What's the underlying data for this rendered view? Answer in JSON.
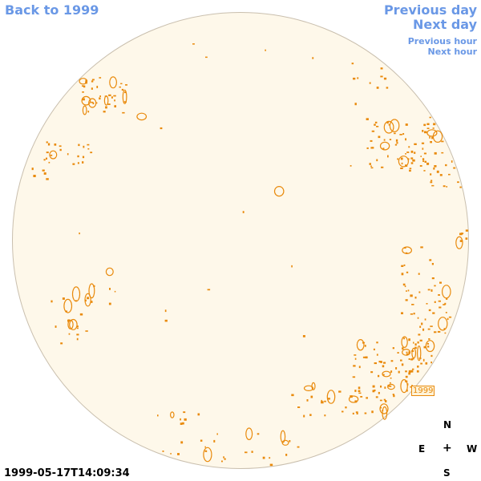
{
  "nav": {
    "back": "Back to 1999",
    "previous_day": "Previous day",
    "next_day": "Next day",
    "previous_hour": "Previous hour",
    "next_hour": "Next hour"
  },
  "region_label": "1999",
  "compass": {
    "north": "N",
    "east": "E",
    "center": "+",
    "west": "W",
    "south": "S"
  },
  "timestamp": "1999-05-17T14:09:34",
  "colors": {
    "link": "#6a98e6",
    "contour": "#e98a0c",
    "disk": "#fef8ea"
  }
}
